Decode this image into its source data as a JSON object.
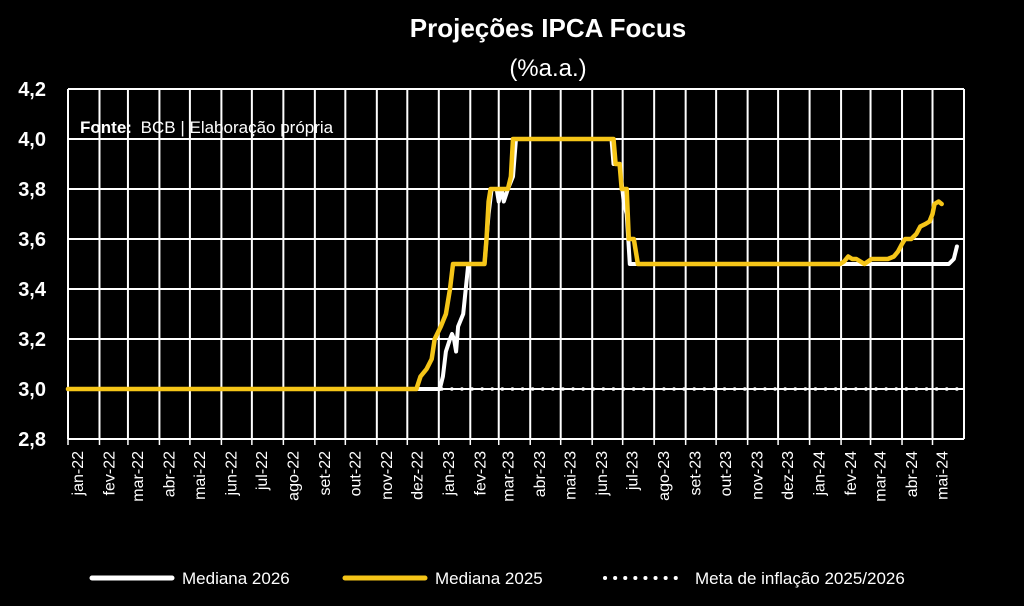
{
  "chart_data": {
    "type": "line",
    "title": "Projeções IPCA Focus",
    "subtitle": "(%a.a.)",
    "source_label": "Fonte:",
    "source_text": "BCB | Elaboração própria",
    "ylim": [
      2.8,
      4.2
    ],
    "y_ticks": [
      "4,2",
      "4,0",
      "3,8",
      "3,6",
      "3,4",
      "3,2",
      "3,0",
      "2,8"
    ],
    "x_ticks": [
      "jan-22",
      "fev-22",
      "mar-22",
      "abr-22",
      "mai-22",
      "jun-22",
      "jul-22",
      "ago-22",
      "set-22",
      "out-22",
      "nov-22",
      "dez-22",
      "jan-23",
      "fev-23",
      "mar-23",
      "abr-23",
      "mai-23",
      "jun-23",
      "jul-23",
      "ago-23",
      "set-23",
      "out-23",
      "nov-23",
      "dez-23",
      "jan-24",
      "fev-24",
      "mar-24",
      "abr-24",
      "mai-24"
    ],
    "x_range": [
      "2022-01-01",
      "2024-06-01"
    ],
    "grid": true,
    "legend_position": "bottom",
    "series": [
      {
        "name": "Mediana 2026",
        "color": "#ffffff",
        "style": "solid",
        "points": [
          [
            "2022-01-01",
            3.0
          ],
          [
            "2022-12-15",
            3.0
          ],
          [
            "2023-01-02",
            3.0
          ],
          [
            "2023-01-05",
            3.05
          ],
          [
            "2023-01-08",
            3.15
          ],
          [
            "2023-01-12",
            3.2
          ],
          [
            "2023-01-14",
            3.22
          ],
          [
            "2023-01-16",
            3.2
          ],
          [
            "2023-01-18",
            3.15
          ],
          [
            "2023-01-20",
            3.25
          ],
          [
            "2023-01-25",
            3.3
          ],
          [
            "2023-01-30",
            3.5
          ],
          [
            "2023-02-15",
            3.5
          ],
          [
            "2023-02-17",
            3.6
          ],
          [
            "2023-02-19",
            3.7
          ],
          [
            "2023-02-22",
            3.8
          ],
          [
            "2023-02-27",
            3.8
          ],
          [
            "2023-03-01",
            3.75
          ],
          [
            "2023-03-04",
            3.8
          ],
          [
            "2023-03-06",
            3.75
          ],
          [
            "2023-03-10",
            3.8
          ],
          [
            "2023-03-15",
            3.85
          ],
          [
            "2023-03-18",
            4.0
          ],
          [
            "2023-06-20",
            4.0
          ],
          [
            "2023-06-22",
            3.9
          ],
          [
            "2023-06-28",
            3.9
          ],
          [
            "2023-07-02",
            3.75
          ],
          [
            "2023-07-05",
            3.7
          ],
          [
            "2023-07-08",
            3.5
          ],
          [
            "2024-05-17",
            3.5
          ],
          [
            "2024-05-22",
            3.52
          ],
          [
            "2024-05-25",
            3.57
          ]
        ]
      },
      {
        "name": "Mediana 2025",
        "color": "#f5c518",
        "style": "solid",
        "points": [
          [
            "2022-01-01",
            3.0
          ],
          [
            "2022-12-10",
            3.0
          ],
          [
            "2022-12-14",
            3.05
          ],
          [
            "2022-12-20",
            3.08
          ],
          [
            "2022-12-25",
            3.12
          ],
          [
            "2022-12-28",
            3.2
          ],
          [
            "2023-01-03",
            3.25
          ],
          [
            "2023-01-08",
            3.3
          ],
          [
            "2023-01-12",
            3.4
          ],
          [
            "2023-01-15",
            3.5
          ],
          [
            "2023-02-15",
            3.5
          ],
          [
            "2023-02-17",
            3.6
          ],
          [
            "2023-02-19",
            3.75
          ],
          [
            "2023-02-21",
            3.8
          ],
          [
            "2023-03-10",
            3.8
          ],
          [
            "2023-03-13",
            3.85
          ],
          [
            "2023-03-15",
            4.0
          ],
          [
            "2023-06-22",
            4.0
          ],
          [
            "2023-06-24",
            3.9
          ],
          [
            "2023-06-28",
            3.9
          ],
          [
            "2023-06-30",
            3.8
          ],
          [
            "2023-07-05",
            3.8
          ],
          [
            "2023-07-07",
            3.6
          ],
          [
            "2023-07-12",
            3.6
          ],
          [
            "2023-07-16",
            3.5
          ],
          [
            "2024-01-31",
            3.5
          ],
          [
            "2024-02-04",
            3.51
          ],
          [
            "2024-02-08",
            3.53
          ],
          [
            "2024-02-12",
            3.52
          ],
          [
            "2024-02-16",
            3.52
          ],
          [
            "2024-02-20",
            3.51
          ],
          [
            "2024-02-24",
            3.5
          ],
          [
            "2024-03-02",
            3.52
          ],
          [
            "2024-03-10",
            3.52
          ],
          [
            "2024-03-18",
            3.52
          ],
          [
            "2024-03-24",
            3.53
          ],
          [
            "2024-03-28",
            3.55
          ],
          [
            "2024-04-01",
            3.58
          ],
          [
            "2024-04-04",
            3.6
          ],
          [
            "2024-04-10",
            3.6
          ],
          [
            "2024-04-15",
            3.62
          ],
          [
            "2024-04-19",
            3.65
          ],
          [
            "2024-04-24",
            3.66
          ],
          [
            "2024-04-28",
            3.67
          ],
          [
            "2024-05-01",
            3.7
          ],
          [
            "2024-05-03",
            3.74
          ],
          [
            "2024-05-07",
            3.75
          ],
          [
            "2024-05-10",
            3.74
          ]
        ]
      },
      {
        "name": "Meta de inflação 2025/2026",
        "color": "#ffffff",
        "style": "dotted",
        "points": [
          [
            "2022-01-01",
            3.0
          ],
          [
            "2024-06-01",
            3.0
          ]
        ]
      }
    ]
  }
}
